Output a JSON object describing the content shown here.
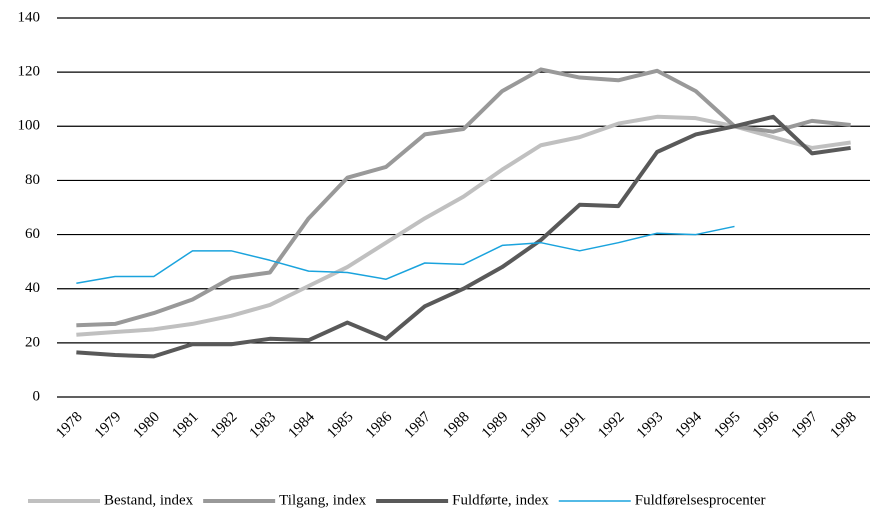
{
  "chart_data": {
    "type": "line",
    "categories": [
      "1978",
      "1979",
      "1980",
      "1981",
      "1982",
      "1983",
      "1984",
      "1985",
      "1986",
      "1987",
      "1988",
      "1989",
      "1990",
      "1991",
      "1992",
      "1993",
      "1994",
      "1995",
      "1996",
      "1997",
      "1998"
    ],
    "series": [
      {
        "name": "Bestand, index",
        "color": "#c0c0c0",
        "width": 4,
        "values": [
          23,
          24,
          25,
          27,
          30,
          34,
          41,
          48,
          57,
          66,
          74,
          84,
          93,
          96,
          101,
          103.5,
          103,
          100,
          96,
          92,
          94
        ]
      },
      {
        "name": "Tilgang, index",
        "color": "#999999",
        "width": 4,
        "values": [
          26.5,
          27,
          31,
          36,
          44,
          46,
          66,
          81,
          85,
          97,
          99,
          113,
          121,
          118,
          117,
          120.5,
          113,
          100,
          98,
          102,
          100.5
        ]
      },
      {
        "name": "Fuldførte, index",
        "color": "#595959",
        "width": 4,
        "values": [
          16.5,
          15.5,
          15,
          19.5,
          19.5,
          21.5,
          21,
          27.5,
          21.5,
          33.5,
          40,
          48,
          58,
          71,
          70.5,
          90.5,
          97,
          100,
          103.5,
          90,
          92
        ]
      },
      {
        "name": "Fuldførelsesprocenter",
        "color": "#1aa3dd",
        "width": 1.5,
        "values": [
          42,
          44.5,
          44.5,
          54,
          54,
          50.5,
          46.5,
          46,
          43.5,
          49.5,
          49,
          56,
          57,
          54,
          57,
          60.5,
          60,
          63,
          null,
          null,
          null
        ]
      }
    ],
    "ylim": [
      0,
      140
    ],
    "yticks": [
      0,
      20,
      40,
      60,
      80,
      100,
      120,
      140
    ],
    "grid": true,
    "legend": "bottom"
  }
}
